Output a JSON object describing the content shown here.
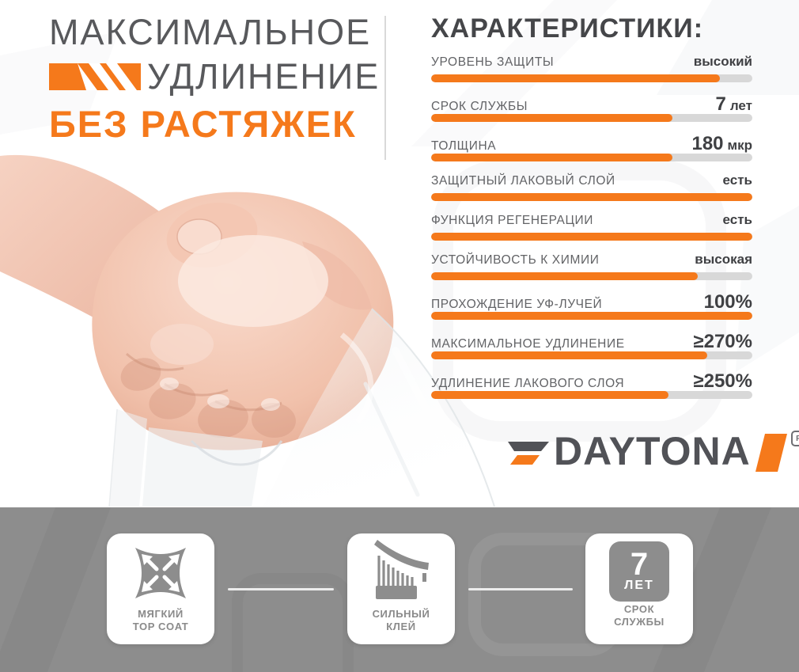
{
  "header": {
    "title_line1": "МАКСИМАЛЬНОЕ",
    "title_line2": "УДЛИНЕНИЕ",
    "title_line3": "БЕЗ РАСТЯЖЕК"
  },
  "specs": {
    "heading": "ХАРАКТЕРИСТИКИ:",
    "rows": [
      {
        "label": "УРОВЕНЬ ЗАЩИТЫ",
        "value_num": "",
        "value_unit": "высокий",
        "percent": 90
      },
      {
        "label": "СРОК СЛУЖБЫ",
        "value_num": "7",
        "value_unit": "лет",
        "percent": 75
      },
      {
        "label": "ТОЛЩИНА",
        "value_num": "180",
        "value_unit": "мкр",
        "percent": 75
      },
      {
        "label": "ЗАЩИТНЫЙ ЛАКОВЫЙ СЛОЙ",
        "value_num": "",
        "value_unit": "есть",
        "percent": 100
      },
      {
        "label": "ФУНКЦИЯ РЕГЕНЕРАЦИИ",
        "value_num": "",
        "value_unit": "есть",
        "percent": 100
      },
      {
        "label": "УСТОЙЧИВОСТЬ К ХИМИИ",
        "value_num": "",
        "value_unit": "высокая",
        "percent": 83
      },
      {
        "label": "ПРОХОЖДЕНИЕ УФ-ЛУЧЕЙ",
        "value_num": "100%",
        "value_unit": "",
        "percent": 100
      },
      {
        "label": "МАКСИМАЛЬНОЕ УДЛИНЕНИЕ",
        "value_num": "≥270%",
        "value_unit": "",
        "percent": 86
      },
      {
        "label": "УДЛИНЕНИЕ ЛАКОВОГО СЛОЯ",
        "value_num": "≥250%",
        "value_unit": "",
        "percent": 74
      }
    ]
  },
  "brand": {
    "name": "DAYTONA",
    "registered_mark": "R"
  },
  "footer": {
    "cards": [
      {
        "icon": "stretch-pillow-arrows-icon",
        "label_line1": "МЯГКИЙ",
        "label_line2": "TOP COAT"
      },
      {
        "icon": "adhesive-peel-icon",
        "label_line1": "СИЛЬНЫЙ",
        "label_line2": "КЛЕЙ"
      },
      {
        "icon": "seven-years-badge-icon",
        "label_line1": "СРОК",
        "label_line2": "СЛУЖБЫ",
        "badge_num": "7",
        "badge_unit": "ЛЕТ"
      }
    ]
  },
  "colors": {
    "accent": "#F5791B",
    "dark_text": "#3F4043",
    "label_text": "#626366",
    "title_gray": "#58595C",
    "bar_track": "#D8D8D8",
    "band_gray": "#8D8D8D",
    "card_text": "#8A8A8A"
  }
}
